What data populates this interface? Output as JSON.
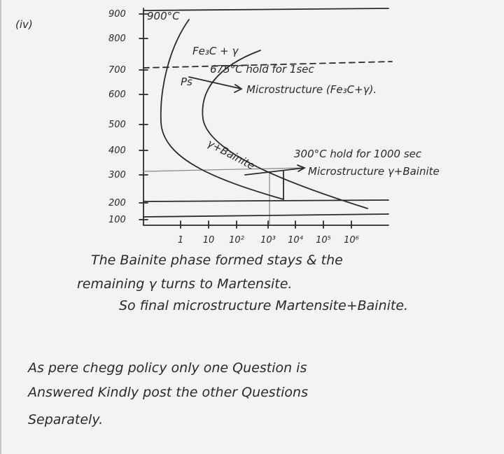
{
  "label": "(iv)",
  "y_axis_labels": [
    "900",
    "800",
    "700",
    "600",
    "500",
    "400",
    "300",
    "200",
    "100"
  ],
  "x_axis_labels": [
    "1",
    "10",
    "10²",
    "10³",
    "10⁴",
    "10⁵",
    "10⁶"
  ],
  "annotations": {
    "temp_900": "900°C",
    "phase_top": "Fe₃C + γ",
    "hold_675": "675°C hold for 1sec",
    "ps": "Ps",
    "micro_675": "Microstructure (Fe₃C+γ).",
    "bainite_region": "γ+Bainite",
    "hold_300": "300°C hold for 1000 sec",
    "micro_300": "Microstructure γ+Bainite"
  },
  "paragraph_1": [
    "The Bainite phase formed stays & the",
    "remaining γ turns to Martensite.",
    "So final microstructure Martensite+Bainite."
  ],
  "paragraph_2": [
    "As pere chegg policy only one Question is",
    "Answered Kindly post the other Questions",
    "Separately."
  ]
}
